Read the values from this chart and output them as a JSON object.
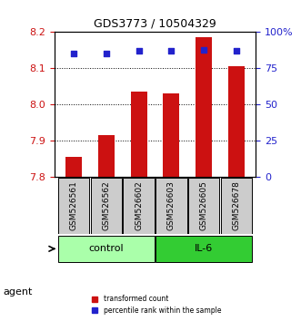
{
  "title": "GDS3773 / 10504329",
  "samples": [
    "GSM526561",
    "GSM526562",
    "GSM526602",
    "GSM526603",
    "GSM526605",
    "GSM526678"
  ],
  "bar_values": [
    7.855,
    7.915,
    8.035,
    8.03,
    8.185,
    8.105
  ],
  "percentile_values": [
    85,
    85,
    87,
    87,
    88,
    87
  ],
  "ylim_left": [
    7.8,
    8.2
  ],
  "ylim_right": [
    0,
    100
  ],
  "yticks_left": [
    7.8,
    7.9,
    8.0,
    8.1,
    8.2
  ],
  "yticks_right": [
    0,
    25,
    50,
    75,
    100
  ],
  "ytick_labels_right": [
    "0",
    "25",
    "50",
    "75",
    "100%"
  ],
  "bar_color": "#cc1111",
  "dot_color": "#2222cc",
  "bar_width": 0.5,
  "groups": [
    {
      "label": "control",
      "indices": [
        0,
        1,
        2
      ],
      "color": "#aaffaa"
    },
    {
      "label": "IL-6",
      "indices": [
        3,
        4,
        5
      ],
      "color": "#33cc33"
    }
  ],
  "agent_label": "agent",
  "grid_color": "#000000",
  "background_color": "#ffffff",
  "sample_box_color": "#cccccc",
  "legend_items": [
    {
      "label": "transformed count",
      "color": "#cc1111",
      "marker": "s"
    },
    {
      "label": "percentile rank within the sample",
      "color": "#2222cc",
      "marker": "s"
    }
  ]
}
